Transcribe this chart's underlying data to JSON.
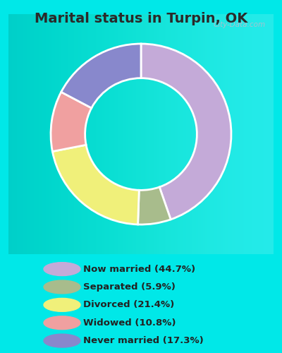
{
  "title": "Marital status in Turpin, OK",
  "title_fontsize": 14,
  "title_fontweight": "bold",
  "categories": [
    "Now married",
    "Separated",
    "Divorced",
    "Widowed",
    "Never married"
  ],
  "values": [
    44.7,
    5.9,
    21.4,
    10.8,
    17.3
  ],
  "colors": [
    "#c4aad8",
    "#a8bc8c",
    "#f0f07a",
    "#f0a0a0",
    "#8888cc"
  ],
  "legend_labels": [
    "Now married (44.7%)",
    "Separated (5.9%)",
    "Divorced (21.4%)",
    "Widowed (10.8%)",
    "Never married (17.3%)"
  ],
  "bg_outer": "#00e8e8",
  "bg_chart_color1": "#e8f5ee",
  "bg_chart_color2": "#f5f5f8",
  "watermark": "City-Data.com",
  "figsize": [
    4.0,
    5.0
  ],
  "dpi": 100,
  "donut_width": 0.38,
  "startangle": 90
}
